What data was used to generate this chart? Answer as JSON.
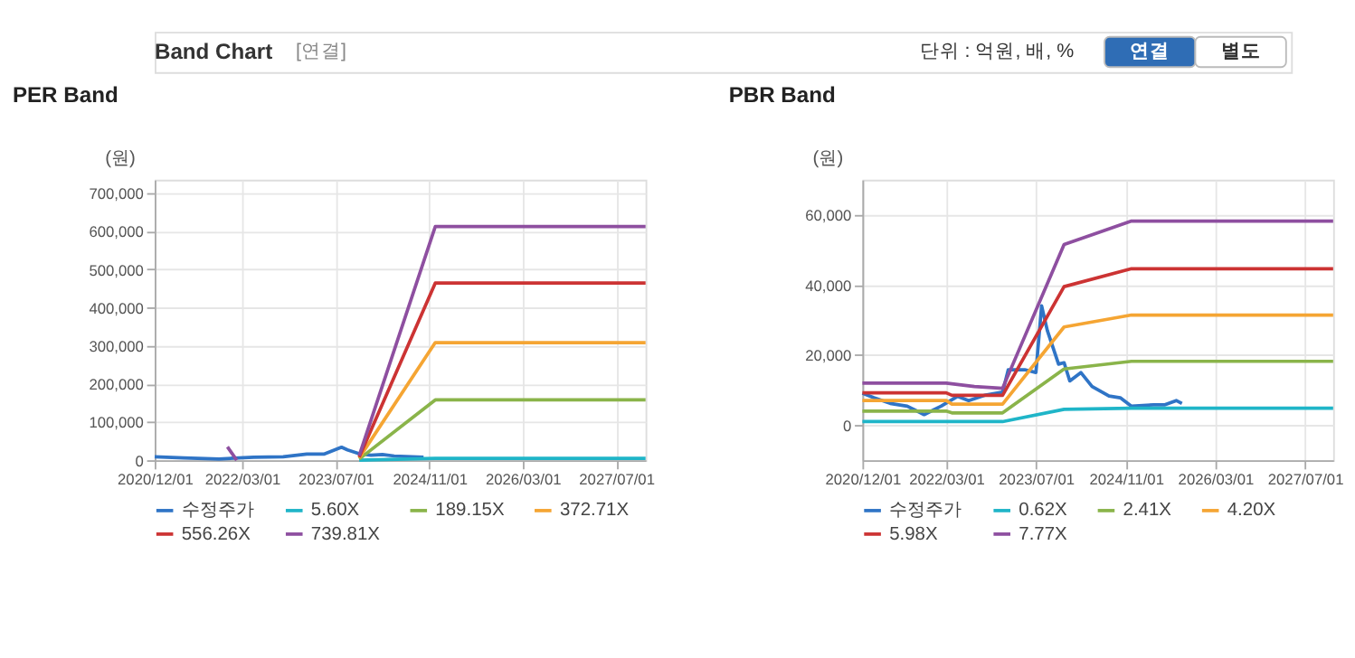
{
  "chart_data": [
    {
      "type": "line",
      "title": "PER Band",
      "ylabel": "(원)",
      "annotations": [
        "Band Chart",
        "[연결]",
        "단위 : 억원, 배, %",
        "연결",
        "별도"
      ],
      "xlim": [
        "2020-12-01",
        "2027-12-01"
      ],
      "xticks": [
        {
          "value": "2020-12-01",
          "label": "2020/12/01"
        },
        {
          "value": "2022-03-01",
          "label": "2022/03/01"
        },
        {
          "value": "2023-07-01",
          "label": "2023/07/01"
        },
        {
          "value": "2024-11-01",
          "label": "2024/11/01"
        },
        {
          "value": "2026-03-01",
          "label": "2026/03/01"
        },
        {
          "value": "2027-07-01",
          "label": "2027/07/01"
        }
      ],
      "ylim": [
        0,
        735000
      ],
      "yticks": [
        0,
        {
          "value": 100000,
          "label": "100,000"
        },
        {
          "value": 200000,
          "label": "200,000"
        },
        {
          "value": 300000,
          "label": "300,000"
        },
        {
          "value": 400000,
          "label": "400,000"
        },
        {
          "value": 500000,
          "label": "500,000"
        },
        {
          "value": 600000,
          "label": "600,000"
        },
        {
          "value": 700000,
          "label": "700,000"
        }
      ],
      "grid": true,
      "legend": "bottom",
      "line_style": "solid",
      "marker": "none",
      "series": [
        {
          "name": "수정주가",
          "color": "#2f74c6",
          "x": [
            "2020-12-01",
            "2021-05-01",
            "2021-11-01",
            "2022-05-01",
            "2022-10-01",
            "2023-02-01",
            "2023-05-01",
            "2023-08-01",
            "2023-09-01",
            "2023-11-01",
            "2024-01-01",
            "2024-03-01",
            "2024-05-01",
            "2024-10-01"
          ],
          "values": [
            9000,
            6000,
            3000,
            8000,
            9000,
            16000,
            16000,
            34000,
            27000,
            17000,
            13000,
            15000,
            11000,
            8000
          ]
        },
        {
          "name": "5.60X",
          "color": "#1fb5c8",
          "x": [
            "2023-11-01",
            "2024-12-01",
            "2027-12-01"
          ],
          "values": [
            0,
            5000,
            5000
          ]
        },
        {
          "name": "189.15X",
          "color": "#8ab44a",
          "x": [
            "2023-11-01",
            "2024-12-01",
            "2027-12-01"
          ],
          "values": [
            3000,
            158000,
            158000
          ]
        },
        {
          "name": "372.71X",
          "color": "#f5a533",
          "x": [
            "2023-11-01",
            "2024-12-01",
            "2027-12-01"
          ],
          "values": [
            6000,
            308000,
            308000
          ]
        },
        {
          "name": "556.26X",
          "color": "#cc3333",
          "x": [
            "2023-11-01",
            "2024-12-01",
            "2027-12-01"
          ],
          "values": [
            8000,
            464000,
            464000
          ]
        },
        {
          "name": "739.81X",
          "color": "#8e4fa0",
          "x": [
            "2021-12-15",
            "2022-02-01",
            "2022-06-01",
            "2023-11-01",
            "2024-12-01",
            "2027-12-01"
          ],
          "values": [
            35000,
            0,
            null,
            12000,
            612000,
            612000
          ]
        }
      ]
    },
    {
      "type": "line",
      "title": "PBR Band",
      "ylabel": "(원)",
      "xlim": [
        "2020-12-01",
        "2027-12-01"
      ],
      "xticks": [
        {
          "value": "2020-12-01",
          "label": "2020/12/01"
        },
        {
          "value": "2022-03-01",
          "label": "2022/03/01"
        },
        {
          "value": "2023-07-01",
          "label": "2023/07/01"
        },
        {
          "value": "2024-11-01",
          "label": "2024/11/01"
        },
        {
          "value": "2026-03-01",
          "label": "2026/03/01"
        },
        {
          "value": "2027-07-01",
          "label": "2027/07/01"
        }
      ],
      "ylim": [
        -10000,
        70000
      ],
      "yticks": [
        0,
        {
          "value": 20000,
          "label": "20,000"
        },
        {
          "value": 40000,
          "label": "40,000"
        },
        {
          "value": 60000,
          "label": "60,000"
        }
      ],
      "grid": true,
      "legend": "bottom",
      "line_style": "solid",
      "marker": "none",
      "series": [
        {
          "name": "수정주가",
          "color": "#2f74c6",
          "x": [
            "2020-12-01",
            "2021-02-01",
            "2021-05-01",
            "2021-08-01",
            "2021-11-01",
            "2022-02-01",
            "2022-05-01",
            "2022-07-01",
            "2022-10-01",
            "2023-01-01",
            "2023-02-01",
            "2023-05-01",
            "2023-07-01",
            "2023-08-01",
            "2023-09-01",
            "2023-11-01",
            "2023-12-01",
            "2024-01-01",
            "2024-03-01",
            "2024-05-01",
            "2024-08-01",
            "2024-10-01",
            "2024-12-01",
            "2025-04-01",
            "2025-06-01",
            "2025-08-01",
            "2025-09-01"
          ],
          "values": [
            9100,
            7800,
            6200,
            5400,
            3000,
            5400,
            8200,
            7000,
            8600,
            9400,
            15800,
            15800,
            15000,
            34000,
            27000,
            17400,
            17800,
            12600,
            15000,
            11000,
            8300,
            7800,
            5400,
            5800,
            5800,
            7000,
            6200
          ]
        },
        {
          "name": "0.62X",
          "color": "#1fb5c8",
          "x": [
            "2020-12-01",
            "2023-01-01",
            "2023-12-01",
            "2024-12-01",
            "2027-12-01"
          ],
          "values": [
            1000,
            1000,
            4500,
            4800,
            4800
          ]
        },
        {
          "name": "2.41X",
          "color": "#8ab44a",
          "x": [
            "2020-12-01",
            "2022-03-01",
            "2022-04-01",
            "2023-01-01",
            "2023-12-01",
            "2024-12-01",
            "2027-12-01"
          ],
          "values": [
            4000,
            4000,
            3500,
            3500,
            16000,
            18200,
            18200
          ]
        },
        {
          "name": "4.20X",
          "color": "#f5a533",
          "x": [
            "2020-12-01",
            "2022-03-01",
            "2022-04-01",
            "2023-01-01",
            "2023-12-01",
            "2024-12-01",
            "2027-12-01"
          ],
          "values": [
            7000,
            7000,
            6000,
            6000,
            28000,
            31400,
            31400
          ]
        },
        {
          "name": "5.98X",
          "color": "#cc3333",
          "x": [
            "2020-12-01",
            "2022-03-01",
            "2022-04-01",
            "2023-01-01",
            "2023-12-01",
            "2024-12-01",
            "2027-12-01"
          ],
          "values": [
            9200,
            9200,
            8500,
            8500,
            39500,
            44600,
            44600
          ]
        },
        {
          "name": "7.77X",
          "color": "#8e4fa0",
          "x": [
            "2020-12-01",
            "2022-03-01",
            "2022-08-01",
            "2023-01-01",
            "2023-12-01",
            "2024-12-01",
            "2027-12-01"
          ],
          "values": [
            12000,
            12000,
            11000,
            10500,
            51500,
            58200,
            58200
          ]
        }
      ]
    }
  ]
}
